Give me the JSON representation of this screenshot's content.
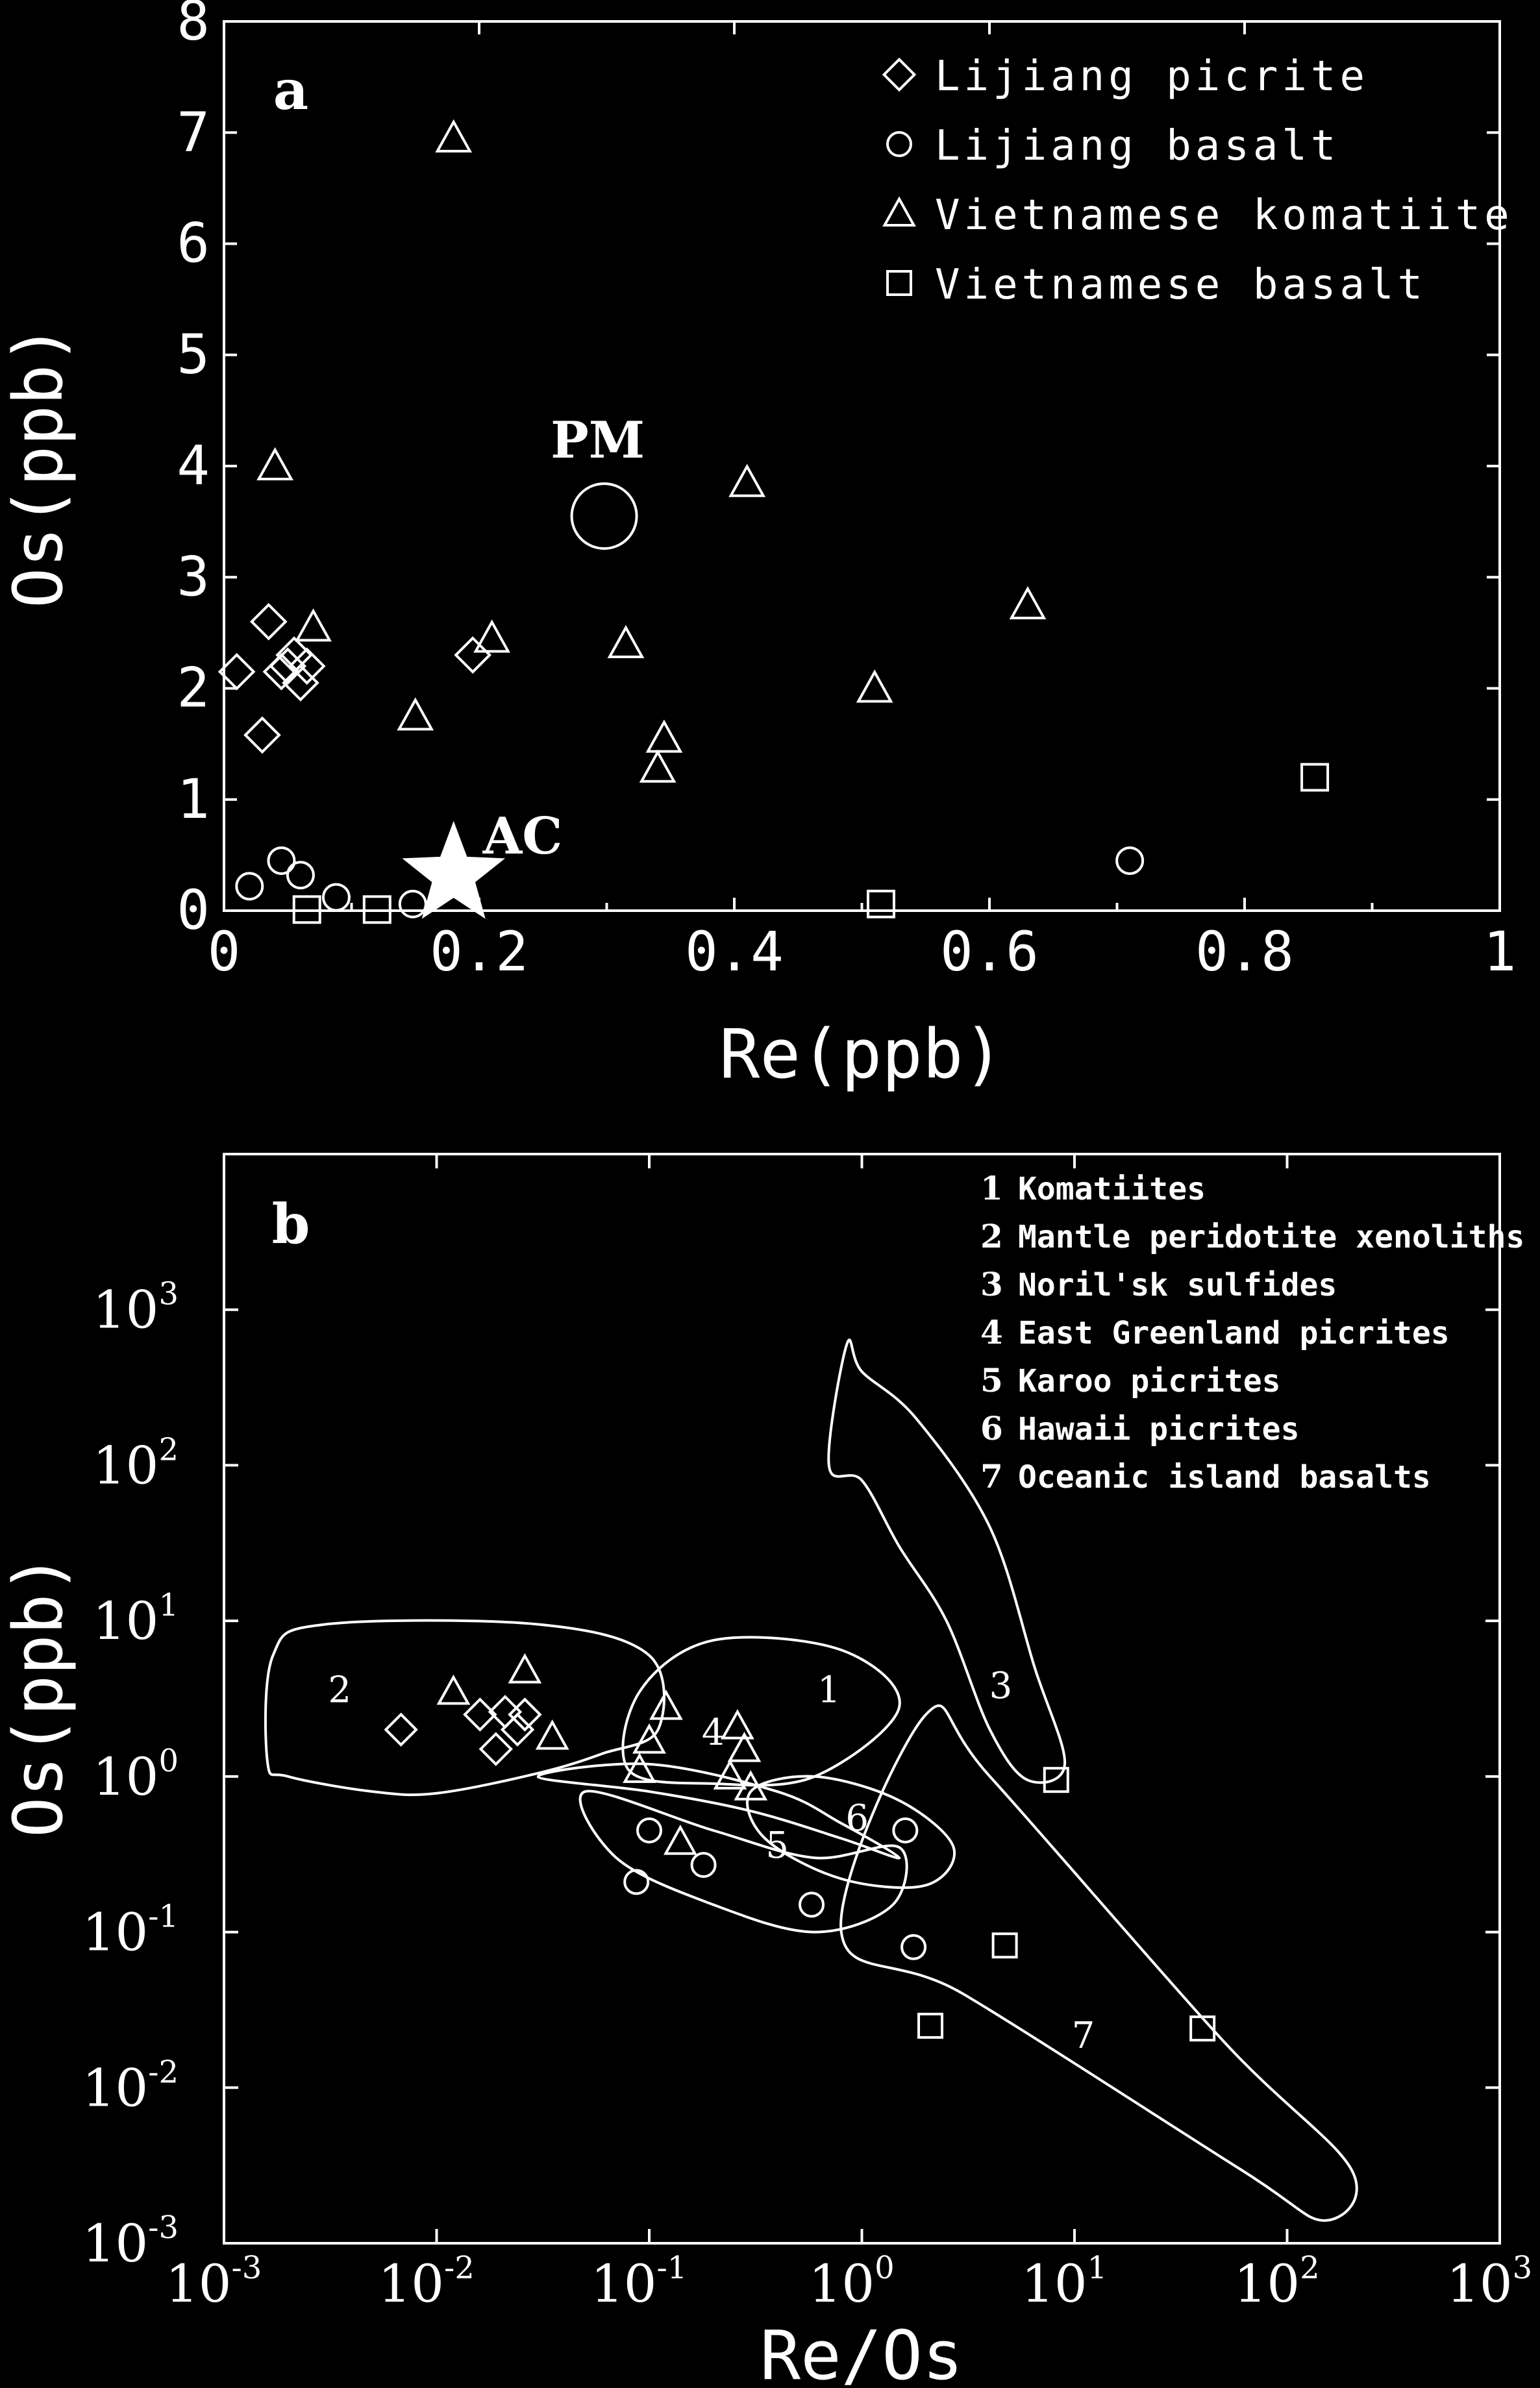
{
  "chart_data": [
    {
      "type": "scatter",
      "panel_label": "a",
      "xlabel": "Re(ppb)",
      "ylabel": "Os(ppb)",
      "xlim": [
        0,
        1
      ],
      "ylim": [
        0,
        8
      ],
      "x_ticks": [
        "0",
        "0.2",
        "0.4",
        "0.6",
        "0.8",
        "1"
      ],
      "y_ticks": [
        "0",
        "1",
        "2",
        "3",
        "4",
        "5",
        "6",
        "7",
        "8"
      ],
      "grid": false,
      "legend_position": "top-right",
      "series": [
        {
          "name": "Lijiang picrite",
          "marker": "diamond",
          "points": [
            [
              0.01,
              2.15
            ],
            [
              0.035,
              2.6
            ],
            [
              0.03,
              1.58
            ],
            [
              0.045,
              2.15
            ],
            [
              0.05,
              2.2
            ],
            [
              0.055,
              2.3
            ],
            [
              0.06,
              2.05
            ],
            [
              0.065,
              2.2
            ],
            [
              0.195,
              2.3
            ]
          ]
        },
        {
          "name": "Lijiang basalt",
          "marker": "circle",
          "points": [
            [
              0.02,
              0.22
            ],
            [
              0.045,
              0.45
            ],
            [
              0.06,
              0.32
            ],
            [
              0.088,
              0.12
            ],
            [
              0.148,
              0.06
            ],
            [
              0.71,
              0.45
            ]
          ]
        },
        {
          "name": "Vietnamese komatiite",
          "marker": "triangle",
          "points": [
            [
              0.18,
              6.95
            ],
            [
              0.04,
              4.0
            ],
            [
              0.41,
              3.85
            ],
            [
              0.07,
              2.55
            ],
            [
              0.21,
              2.45
            ],
            [
              0.63,
              2.75
            ],
            [
              0.315,
              2.4
            ],
            [
              0.51,
              2.0
            ],
            [
              0.15,
              1.75
            ],
            [
              0.345,
              1.55
            ],
            [
              0.34,
              1.28
            ]
          ]
        },
        {
          "name": "Vietnamese basalt",
          "marker": "square",
          "points": [
            [
              0.065,
              0.01
            ],
            [
              0.12,
              0.01
            ],
            [
              0.515,
              0.06
            ],
            [
              0.855,
              1.2
            ]
          ]
        }
      ],
      "annotations": [
        {
          "text": "PM",
          "x": 0.298,
          "y": 3.55,
          "marker": "large-circle"
        },
        {
          "text": "AC",
          "x": 0.18,
          "y": 0.25,
          "marker": "star"
        }
      ]
    },
    {
      "type": "scatter",
      "panel_label": "b",
      "xlabel": "Re/Os",
      "ylabel": "Os(ppb)",
      "x_scale": "log",
      "y_scale": "log",
      "xlim": [
        0.001,
        1000
      ],
      "ylim": [
        0.001,
        10000
      ],
      "x_ticks": [
        {
          "base": "10",
          "exp": "-3"
        },
        {
          "base": "10",
          "exp": "-2"
        },
        {
          "base": "10",
          "exp": "-1"
        },
        {
          "base": "10",
          "exp": "0"
        },
        {
          "base": "10",
          "exp": "1"
        },
        {
          "base": "10",
          "exp": "2"
        },
        {
          "base": "10",
          "exp": "3"
        }
      ],
      "y_ticks": [
        {
          "base": "10",
          "exp": "-3"
        },
        {
          "base": "10",
          "exp": "-2"
        },
        {
          "base": "10",
          "exp": "-1"
        },
        {
          "base": "10",
          "exp": "0"
        },
        {
          "base": "10",
          "exp": "1"
        },
        {
          "base": "10",
          "exp": "2"
        },
        {
          "base": "10",
          "exp": "3"
        }
      ],
      "grid": false,
      "legend_position": "top-right",
      "legend": [
        {
          "num": "1",
          "text": "Komatiites"
        },
        {
          "num": "2",
          "text": "Mantle peridotite  xenoliths"
        },
        {
          "num": "3",
          "text": "Noril'sk sulfides"
        },
        {
          "num": "4",
          "text": "East Greenland picrites"
        },
        {
          "num": "5",
          "text": "Karoo picrites"
        },
        {
          "num": "6",
          "text": "Hawaii picrites"
        },
        {
          "num": "7",
          "text": "Oceanic island basalts"
        }
      ],
      "fields": [
        {
          "label": "1",
          "label_at": [
            0.7,
            3.0
          ],
          "outline": [
            [
              0.08,
              1.1
            ],
            [
              0.09,
              3.5
            ],
            [
              0.2,
              7.5
            ],
            [
              0.8,
              6.5
            ],
            [
              1.5,
              2.8
            ],
            [
              0.6,
              1.0
            ],
            [
              0.2,
              0.9
            ],
            [
              0.08,
              1.1
            ]
          ]
        },
        {
          "label": "2",
          "label_at": [
            0.0035,
            3.0
          ],
          "outline": [
            [
              0.0016,
              1.25
            ],
            [
              0.0017,
              6.0
            ],
            [
              0.003,
              9.5
            ],
            [
              0.03,
              9.5
            ],
            [
              0.1,
              6.0
            ],
            [
              0.11,
              2.0
            ],
            [
              0.06,
              1.4
            ],
            [
              0.03,
              1.05
            ],
            [
              0.01,
              0.78
            ],
            [
              0.005,
              0.8
            ],
            [
              0.002,
              1.0
            ],
            [
              0.0016,
              1.25
            ]
          ]
        },
        {
          "label": "3",
          "label_at": [
            4.5,
            3.2
          ],
          "outline": [
            [
              0.7,
              100
            ],
            [
              0.85,
              600
            ],
            [
              1.0,
              400
            ],
            [
              1.8,
              200
            ],
            [
              4.0,
              40
            ],
            [
              6.5,
              5.0
            ],
            [
              9.0,
              1.2
            ],
            [
              6.0,
              0.95
            ],
            [
              4.0,
              2.0
            ],
            [
              2.5,
              10
            ],
            [
              1.5,
              30
            ],
            [
              1.0,
              80
            ],
            [
              0.7,
              100
            ]
          ]
        },
        {
          "label": "4",
          "label_at": [
            0.2,
            1.6
          ],
          "outline": [
            [
              0.03,
              1.0
            ],
            [
              0.1,
              0.8
            ],
            [
              0.3,
              0.6
            ],
            [
              0.8,
              0.4
            ],
            [
              1.5,
              0.3
            ],
            [
              0.8,
              0.5
            ],
            [
              0.4,
              0.8
            ],
            [
              0.1,
              1.2
            ],
            [
              0.03,
              1.0
            ]
          ]
        },
        {
          "label": "5",
          "label_at": [
            0.4,
            0.3
          ],
          "outline": [
            [
              0.05,
              0.8
            ],
            [
              0.2,
              0.45
            ],
            [
              0.6,
              0.3
            ],
            [
              1.5,
              0.35
            ],
            [
              1.4,
              0.15
            ],
            [
              0.6,
              0.1
            ],
            [
              0.2,
              0.15
            ],
            [
              0.07,
              0.3
            ],
            [
              0.05,
              0.8
            ]
          ]
        },
        {
          "label": "6",
          "label_at": [
            0.95,
            0.45
          ],
          "outline": [
            [
              0.3,
              0.8
            ],
            [
              0.6,
              1.0
            ],
            [
              1.5,
              0.7
            ],
            [
              2.7,
              0.35
            ],
            [
              2.0,
              0.2
            ],
            [
              0.8,
              0.22
            ],
            [
              0.35,
              0.4
            ],
            [
              0.3,
              0.8
            ]
          ]
        },
        {
          "label": "7",
          "label_at": [
            11,
            0.018
          ],
          "outline": [
            [
              0.8,
              0.1
            ],
            [
              2.0,
              2.5
            ],
            [
              4.0,
              1.0
            ],
            [
              50,
              0.02
            ],
            [
              200,
              0.003
            ],
            [
              150,
              0.0014
            ],
            [
              60,
              0.003
            ],
            [
              3.0,
              0.04
            ],
            [
              0.8,
              0.1
            ]
          ]
        }
      ],
      "series": [
        {
          "name": "Lijiang picrite",
          "marker": "diamond",
          "points": [
            [
              0.0068,
              2.0
            ],
            [
              0.016,
              2.5
            ],
            [
              0.019,
              1.5
            ],
            [
              0.021,
              2.6
            ],
            [
              0.024,
              2.0
            ],
            [
              0.026,
              2.5
            ]
          ]
        },
        {
          "name": "Lijiang basalt",
          "marker": "circle",
          "points": [
            [
              0.087,
              0.21
            ],
            [
              0.1,
              0.45
            ],
            [
              0.18,
              0.27
            ],
            [
              0.58,
              0.15
            ],
            [
              1.6,
              0.45
            ],
            [
              1.75,
              0.08
            ]
          ]
        },
        {
          "name": "Vietnamese komatiite",
          "marker": "triangle",
          "points": [
            [
              0.012,
              3.5
            ],
            [
              0.026,
              4.8
            ],
            [
              0.035,
              1.8
            ],
            [
              0.09,
              1.1
            ],
            [
              0.1,
              1.7
            ],
            [
              0.12,
              2.8
            ],
            [
              0.14,
              0.38
            ],
            [
              0.24,
              1.0
            ],
            [
              0.26,
              2.1
            ],
            [
              0.28,
              1.5
            ],
            [
              0.3,
              0.85
            ]
          ]
        },
        {
          "name": "Vietnamese basalt",
          "marker": "square",
          "points": [
            [
              2.1,
              0.025
            ],
            [
              4.7,
              0.082
            ],
            [
              8.2,
              0.95
            ],
            [
              40,
              0.024
            ]
          ]
        }
      ]
    }
  ]
}
